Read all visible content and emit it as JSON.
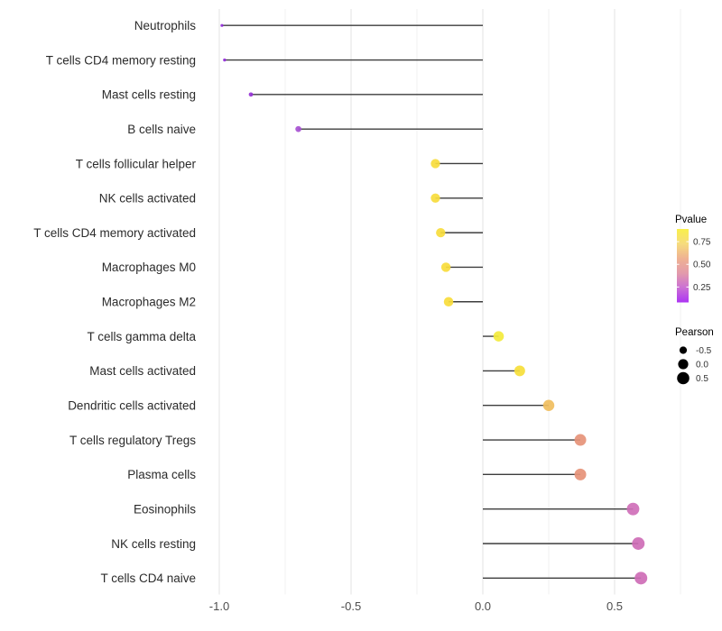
{
  "figure": {
    "background": "#FFFFFF"
  },
  "chart_data": {
    "type": "scatter",
    "variant": "lollipop",
    "title": "",
    "xlabel": "",
    "ylabel": "",
    "grid": "vertical-only",
    "legend_position": "right",
    "categories": [
      "Neutrophils",
      "T cells CD4 memory resting",
      "Mast cells resting",
      "B cells naive",
      "T cells follicular helper",
      "NK cells activated",
      "T cells CD4 memory activated",
      "Macrophages M0",
      "Macrophages M2",
      "T cells gamma delta",
      "Mast cells activated",
      "Dendritic cells activated",
      "T cells regulatory  Tregs",
      "Plasma cells",
      "Eosinophils",
      "NK cells resting",
      "T cells CD4 naive"
    ],
    "series": [
      {
        "name": "Pearson",
        "values": [
          -0.99,
          -0.98,
          -0.88,
          -0.7,
          -0.18,
          -0.18,
          -0.16,
          -0.14,
          -0.13,
          0.06,
          0.14,
          0.25,
          0.37,
          0.37,
          0.57,
          0.59,
          0.6
        ],
        "colors": [
          "#942CDB",
          "#942CDB",
          "#9632D6",
          "#A751D3",
          "#F7DC3C",
          "#F7DC3C",
          "#F7DC3C",
          "#F8DC3B",
          "#F8DC3B",
          "#F3EA3C",
          "#F6DE3A",
          "#F0BE5E",
          "#E69378",
          "#E69378",
          "#CF6FB8",
          "#CE6CB6",
          "#CE6CB6"
        ],
        "pvalue_approx_from_color": [
          0.09,
          0.09,
          0.11,
          0.17,
          0.8,
          0.8,
          0.8,
          0.8,
          0.8,
          0.88,
          0.82,
          0.7,
          0.55,
          0.55,
          0.32,
          0.31,
          0.31
        ]
      }
    ],
    "x_ticks": [
      -1.0,
      -0.5,
      0.0,
      0.5
    ],
    "x_tick_labels": [
      "-1.0",
      "-0.5",
      "0.0",
      "0.5"
    ],
    "x_minor_ticks": [
      -1.0,
      -0.75,
      -0.5,
      -0.25,
      0.0,
      0.25,
      0.5,
      0.75
    ],
    "xlim": [
      -1.16,
      0.88
    ],
    "baseline_x": 0.0,
    "legends": {
      "pvalue": {
        "title": "Pvalue",
        "tick_labels": [
          "0.75",
          "0.50",
          "0.25"
        ],
        "tick_values": [
          0.75,
          0.5,
          0.25
        ],
        "bar_value_range": [
          0.89,
          0.08
        ],
        "gradient_top_to_bottom": [
          "#F9F04B",
          "#F6DC7D",
          "#EFB292",
          "#E39BAB",
          "#CB70D4",
          "#AC35F3"
        ]
      },
      "pearson": {
        "title": "Pearson",
        "labels": [
          "-0.5",
          "0.0",
          "0.5"
        ],
        "values": [
          -0.5,
          0.0,
          0.5
        ],
        "dot_color": "#000000"
      }
    },
    "style": {
      "stem_color": "#3D3D3D",
      "grid_major_color": "#E3E3E3",
      "grid_minor_color": "#F1F1F1",
      "category_label_color": "#2B2B2B",
      "axis_label_color": "#4D4D4D",
      "legend_title_color": "#000000",
      "legend_label_color": "#333333",
      "point_opacity": 0.92
    }
  }
}
